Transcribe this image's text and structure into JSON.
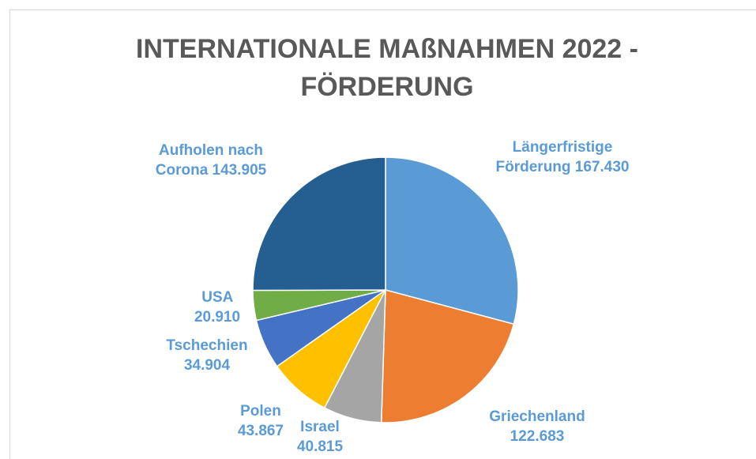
{
  "chart_data": {
    "type": "pie",
    "title": "INTERNATIONALE MAßNAHMEN 2022 - FÖRDERUNG",
    "categories": [
      "Längerfristige Förderung",
      "Griechenland",
      "Israel",
      "Polen",
      "Tschechien",
      "USA",
      "Aufholen nach Corona"
    ],
    "values": [
      167430,
      122683,
      40815,
      43867,
      34904,
      20910,
      143905
    ],
    "value_labels": [
      "167.430",
      "122.683",
      "40.815",
      "43.867",
      "34.904",
      "20.910",
      "143.905"
    ],
    "colors": [
      "#5b9bd5",
      "#ed7d31",
      "#a5a5a5",
      "#ffc000",
      "#4472c4",
      "#70ad47",
      "#255e91"
    ]
  }
}
